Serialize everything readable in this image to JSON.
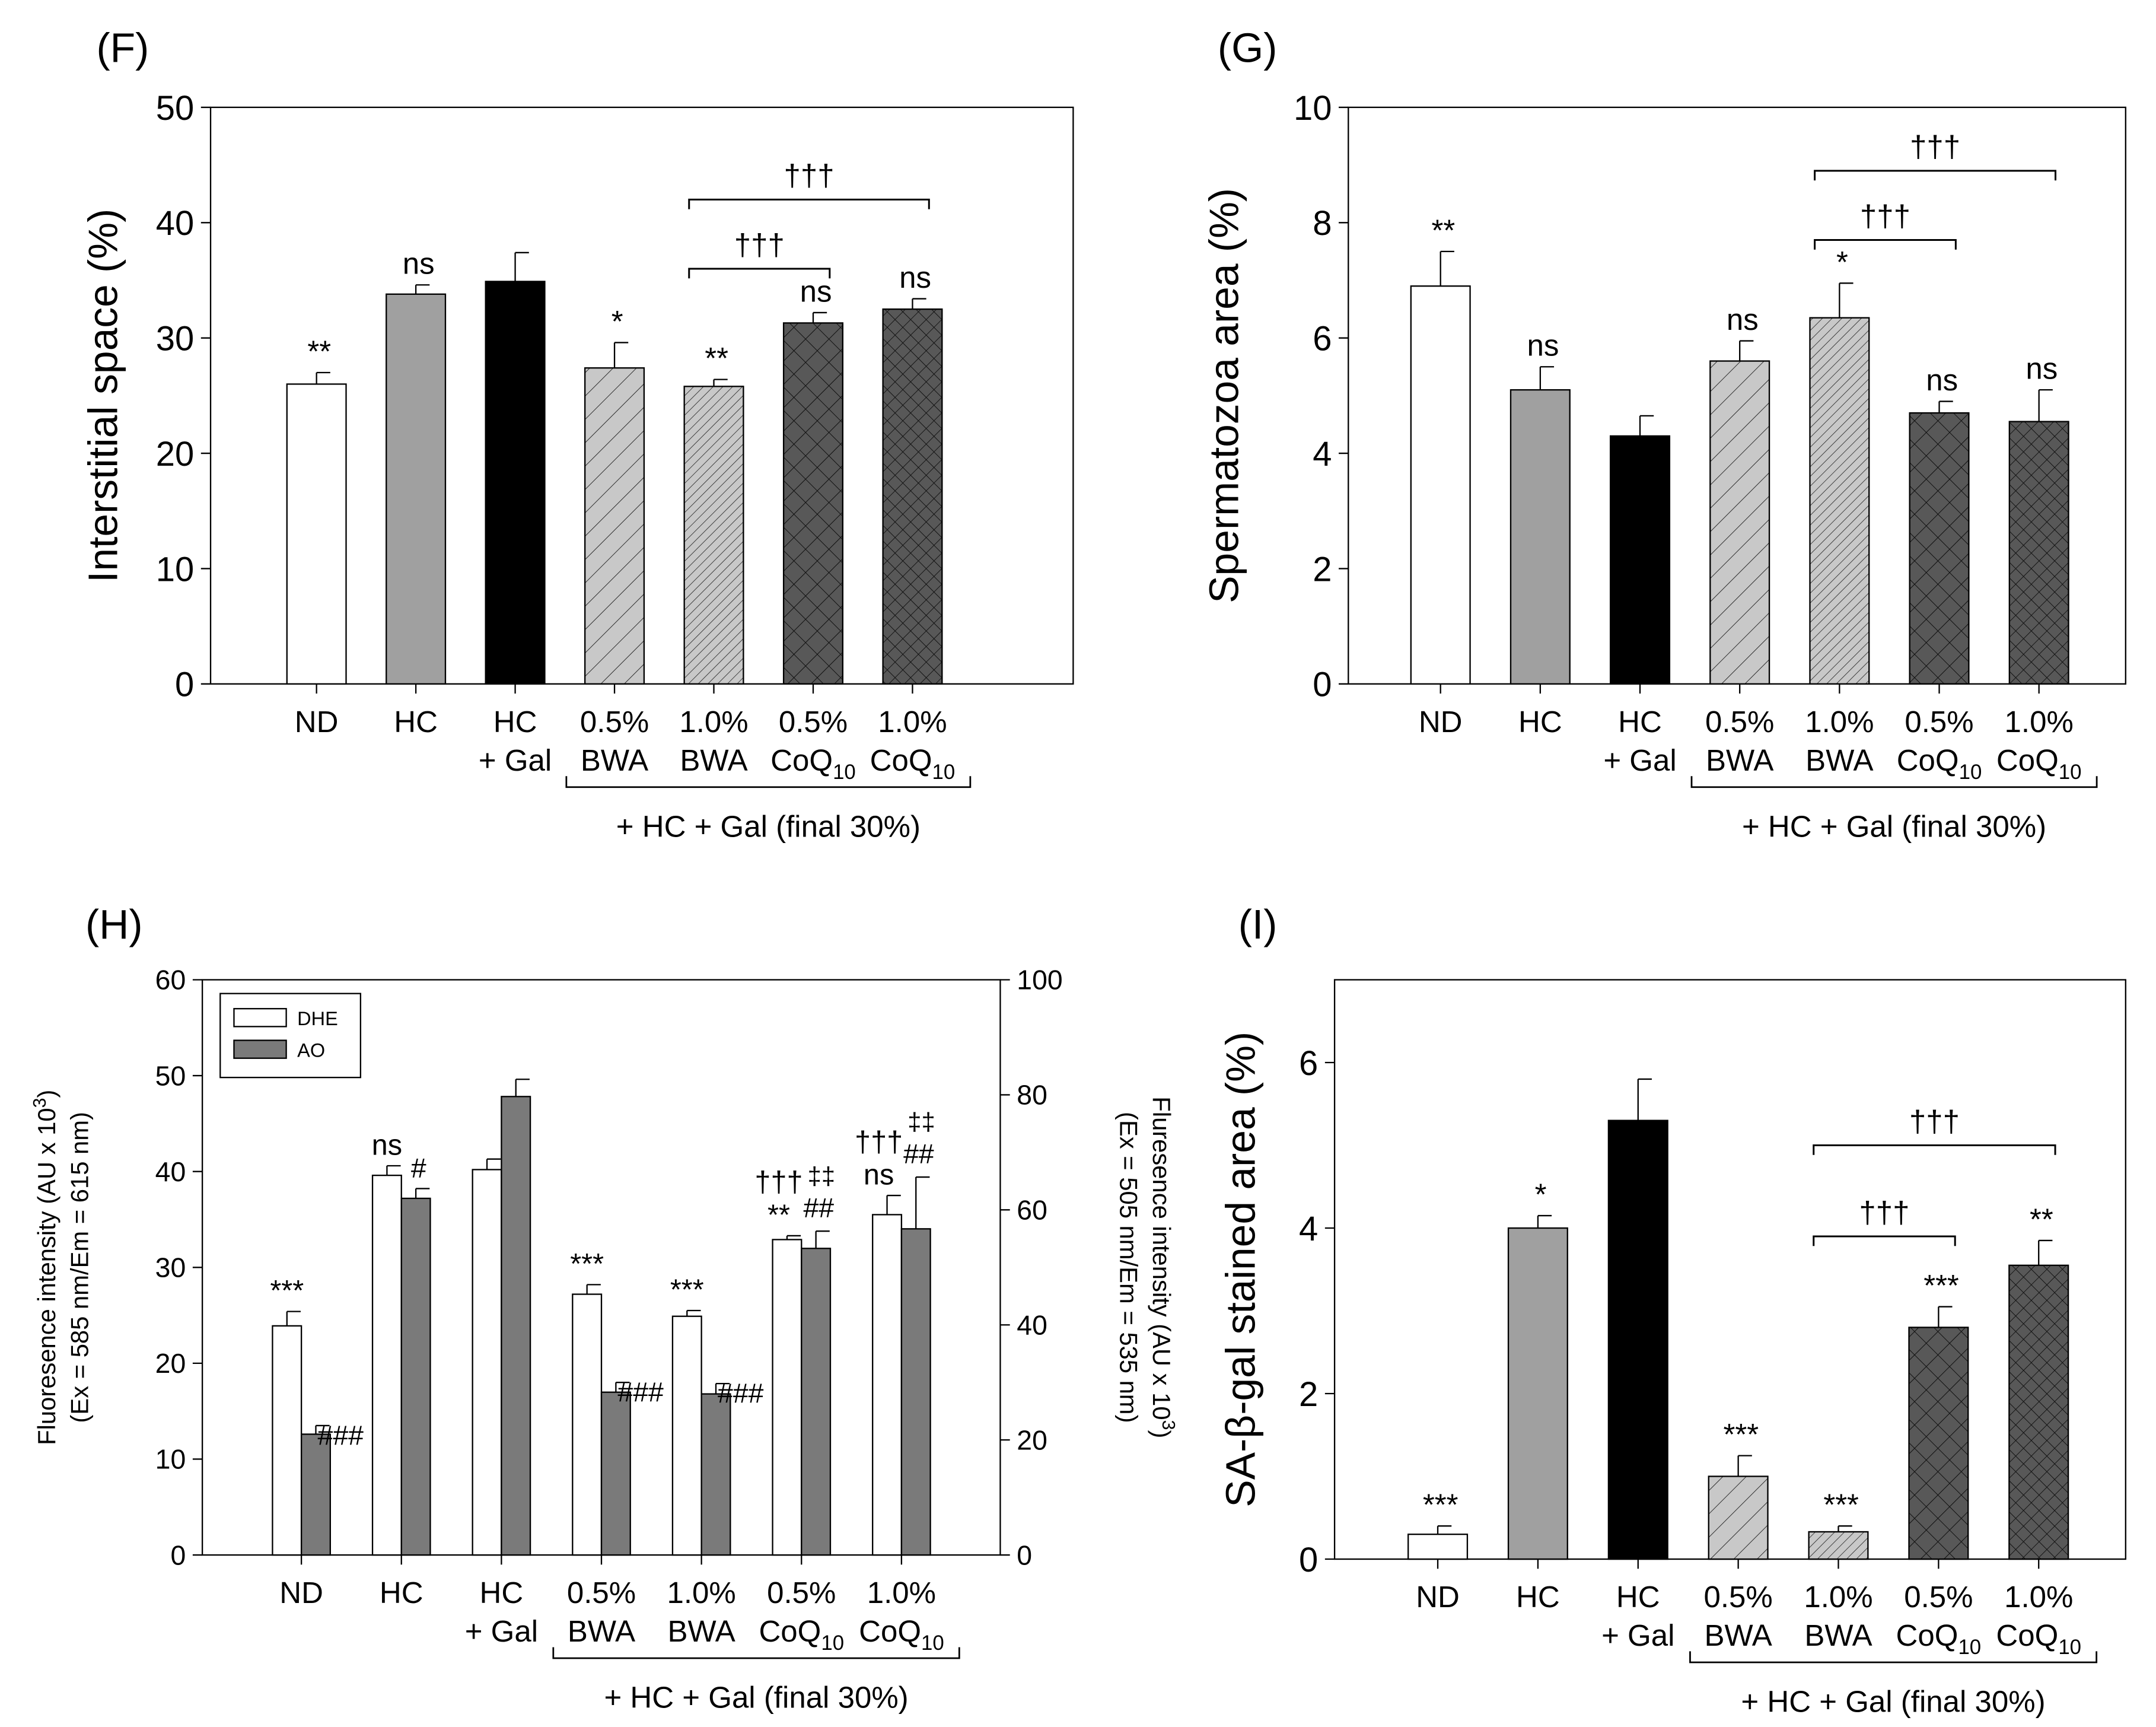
{
  "colors": {
    "white": "#ffffff",
    "gray": "#a0a0a0",
    "black": "#000000",
    "light": "#c8c8c8",
    "dark": "#585858"
  },
  "categories": [
    {
      "l1": "ND",
      "l2": "",
      "sub": ""
    },
    {
      "l1": "HC",
      "l2": "",
      "sub": ""
    },
    {
      "l1": "HC",
      "l2": "+ Gal",
      "sub": ""
    },
    {
      "l1": "0.5%",
      "l2": "BWA",
      "sub": ""
    },
    {
      "l1": "1.0%",
      "l2": "BWA",
      "sub": ""
    },
    {
      "l1": "0.5%",
      "l2": "CoQ",
      "sub": "10"
    },
    {
      "l1": "1.0%",
      "l2": "CoQ",
      "sub": "10"
    }
  ],
  "group_label": "+ HC + Gal (final 30%)",
  "chart_data": [
    {
      "panel": "(F)",
      "type": "bar",
      "ylabel": "Interstitial space (%)",
      "ylim": [
        0,
        50
      ],
      "yticks": [
        0,
        10,
        20,
        30,
        40,
        50
      ],
      "values": [
        26.0,
        33.8,
        34.9,
        27.4,
        25.8,
        31.3,
        32.5
      ],
      "errors": [
        1.0,
        0.8,
        2.5,
        2.2,
        0.6,
        0.9,
        0.9
      ],
      "annotations": [
        "**",
        "ns",
        "",
        "*",
        "**",
        "ns",
        "ns"
      ],
      "brackets": [
        {
          "from": 4,
          "to": 5,
          "level": 36,
          "label": "†††"
        },
        {
          "from": 4,
          "to": 6,
          "level": 42,
          "label": "†††"
        }
      ]
    },
    {
      "panel": "(G)",
      "type": "bar",
      "ylabel": "Spermatozoa area (%)",
      "ylim": [
        0,
        10
      ],
      "yticks": [
        0,
        2,
        4,
        6,
        8,
        10
      ],
      "values": [
        6.9,
        5.1,
        4.3,
        5.6,
        6.35,
        4.7,
        4.55
      ],
      "errors": [
        0.6,
        0.4,
        0.35,
        0.35,
        0.6,
        0.2,
        0.55
      ],
      "annotations": [
        "**",
        "ns",
        "",
        "ns",
        "*",
        "ns",
        "ns"
      ],
      "brackets": [
        {
          "from": 4,
          "to": 5,
          "level": 7.7,
          "label": "†††"
        },
        {
          "from": 4,
          "to": 6,
          "level": 8.9,
          "label": "†††"
        }
      ]
    },
    {
      "panel": "(H)",
      "type": "bar",
      "ylabel": "Fluoresence intensity (AU x 10",
      "ylabel_sup": "3",
      "ylabel2": "(Ex = 585 nm/Em = 615 nm)",
      "ylabel_right": "Fluresence intensity (AU x 10",
      "ylabel_right_sup": "3",
      "ylabel_right2": "(Ex = 505 nm/Em = 535 nm)",
      "ylim": [
        0,
        60
      ],
      "yticks": [
        0,
        10,
        20,
        30,
        40,
        50,
        60
      ],
      "ylim_right": [
        0,
        100
      ],
      "yticks_right": [
        0,
        20,
        40,
        60,
        80,
        100
      ],
      "legend": [
        "DHE",
        "AO"
      ],
      "series": [
        {
          "name": "DHE",
          "axis": "left",
          "values": [
            23.9,
            39.6,
            40.2,
            27.2,
            24.9,
            32.9,
            35.5
          ],
          "errors": [
            1.5,
            1.0,
            1.1,
            1.0,
            0.6,
            0.4,
            2.0
          ],
          "annotations": [
            "***",
            "ns",
            "",
            "***",
            "***",
            "**",
            "ns"
          ],
          "annotations2": [
            "",
            "",
            "",
            "",
            "",
            "†††",
            "†††"
          ]
        },
        {
          "name": "AO",
          "axis": "right",
          "values": [
            21.0,
            62.0,
            79.7,
            28.3,
            28.0,
            53.3,
            56.7
          ],
          "errors": [
            1.5,
            1.7,
            3.0,
            1.7,
            1.8,
            3.0,
            9.0
          ],
          "annotations": [
            "###",
            "#",
            "",
            "###",
            "###",
            "##",
            "##"
          ],
          "annotations2": [
            "",
            "",
            "",
            "",
            "",
            "‡‡",
            "‡‡"
          ]
        }
      ]
    },
    {
      "panel": "(I)",
      "type": "bar",
      "ylabel": "SA-β-gal stained area (%)",
      "ylim": [
        0,
        7
      ],
      "yticks": [
        0,
        2,
        4,
        6
      ],
      "values": [
        0.3,
        4.0,
        5.3,
        1.0,
        0.33,
        2.8,
        3.55
      ],
      "errors": [
        0.1,
        0.15,
        0.5,
        0.25,
        0.07,
        0.25,
        0.3
      ],
      "annotations": [
        "***",
        "*",
        "",
        "***",
        "***",
        "***",
        "**"
      ],
      "brackets": [
        {
          "from": 4,
          "to": 5,
          "level": 3.9,
          "label": "†††"
        },
        {
          "from": 4,
          "to": 6,
          "level": 5.0,
          "label": "†††"
        }
      ]
    }
  ]
}
